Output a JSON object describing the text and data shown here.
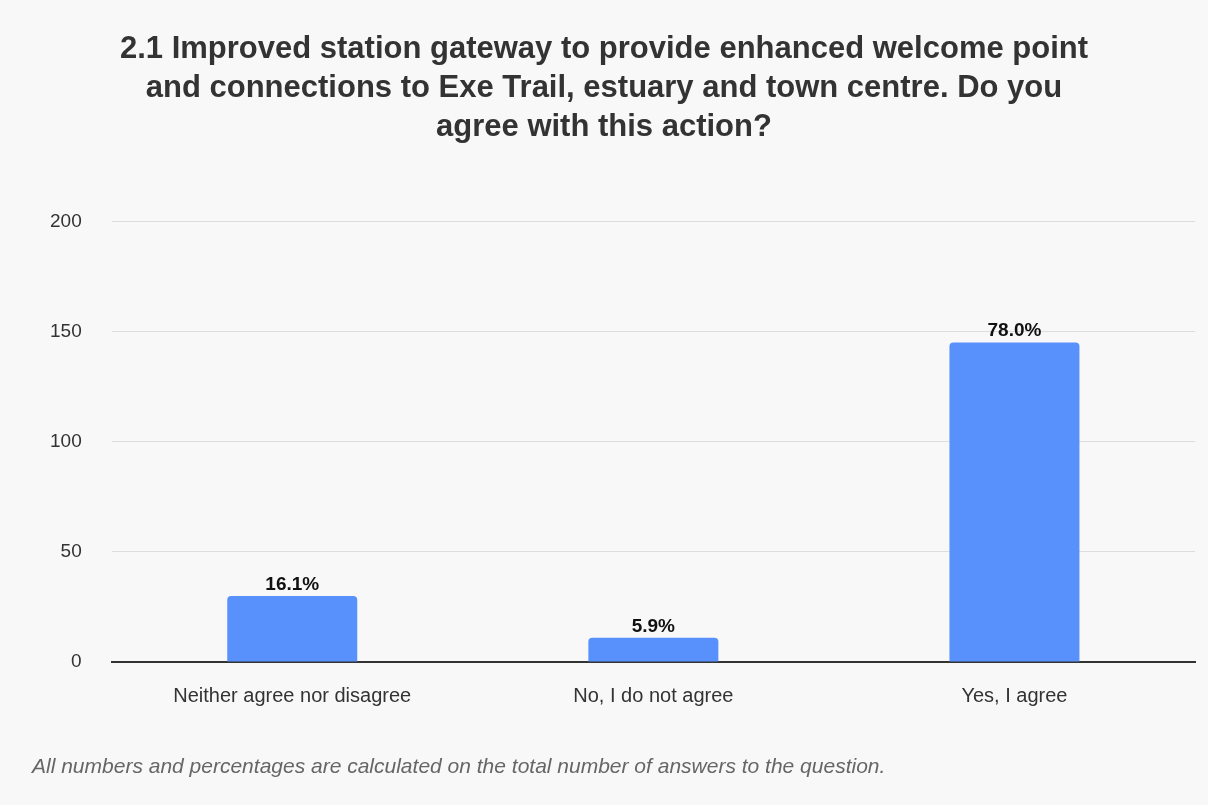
{
  "chart_data": {
    "type": "bar",
    "title": "2.1 Improved station gateway to provide enhanced welcome point and connections to Exe Trail, estuary and town centre. Do you agree with this action?",
    "categories": [
      "Neither agree nor disagree",
      "No, I do not agree",
      "Yes, I agree"
    ],
    "values": [
      30,
      11,
      145
    ],
    "color": "#5891fb",
    "ylim": [
      0,
      200
    ],
    "yticks": [
      0,
      50,
      100,
      150,
      200
    ],
    "grid": "y",
    "legend": false,
    "annotations": [
      {
        "text": "16.1%",
        "x": "Neither agree nor disagree",
        "y": 30
      },
      {
        "text": "5.9%",
        "x": "No, I do not agree",
        "y": 11
      },
      {
        "text": "78.0%",
        "x": "Yes, I agree",
        "y": 145
      },
      "All numbers and percentages are calculated on the total number of answers to the question."
    ]
  }
}
